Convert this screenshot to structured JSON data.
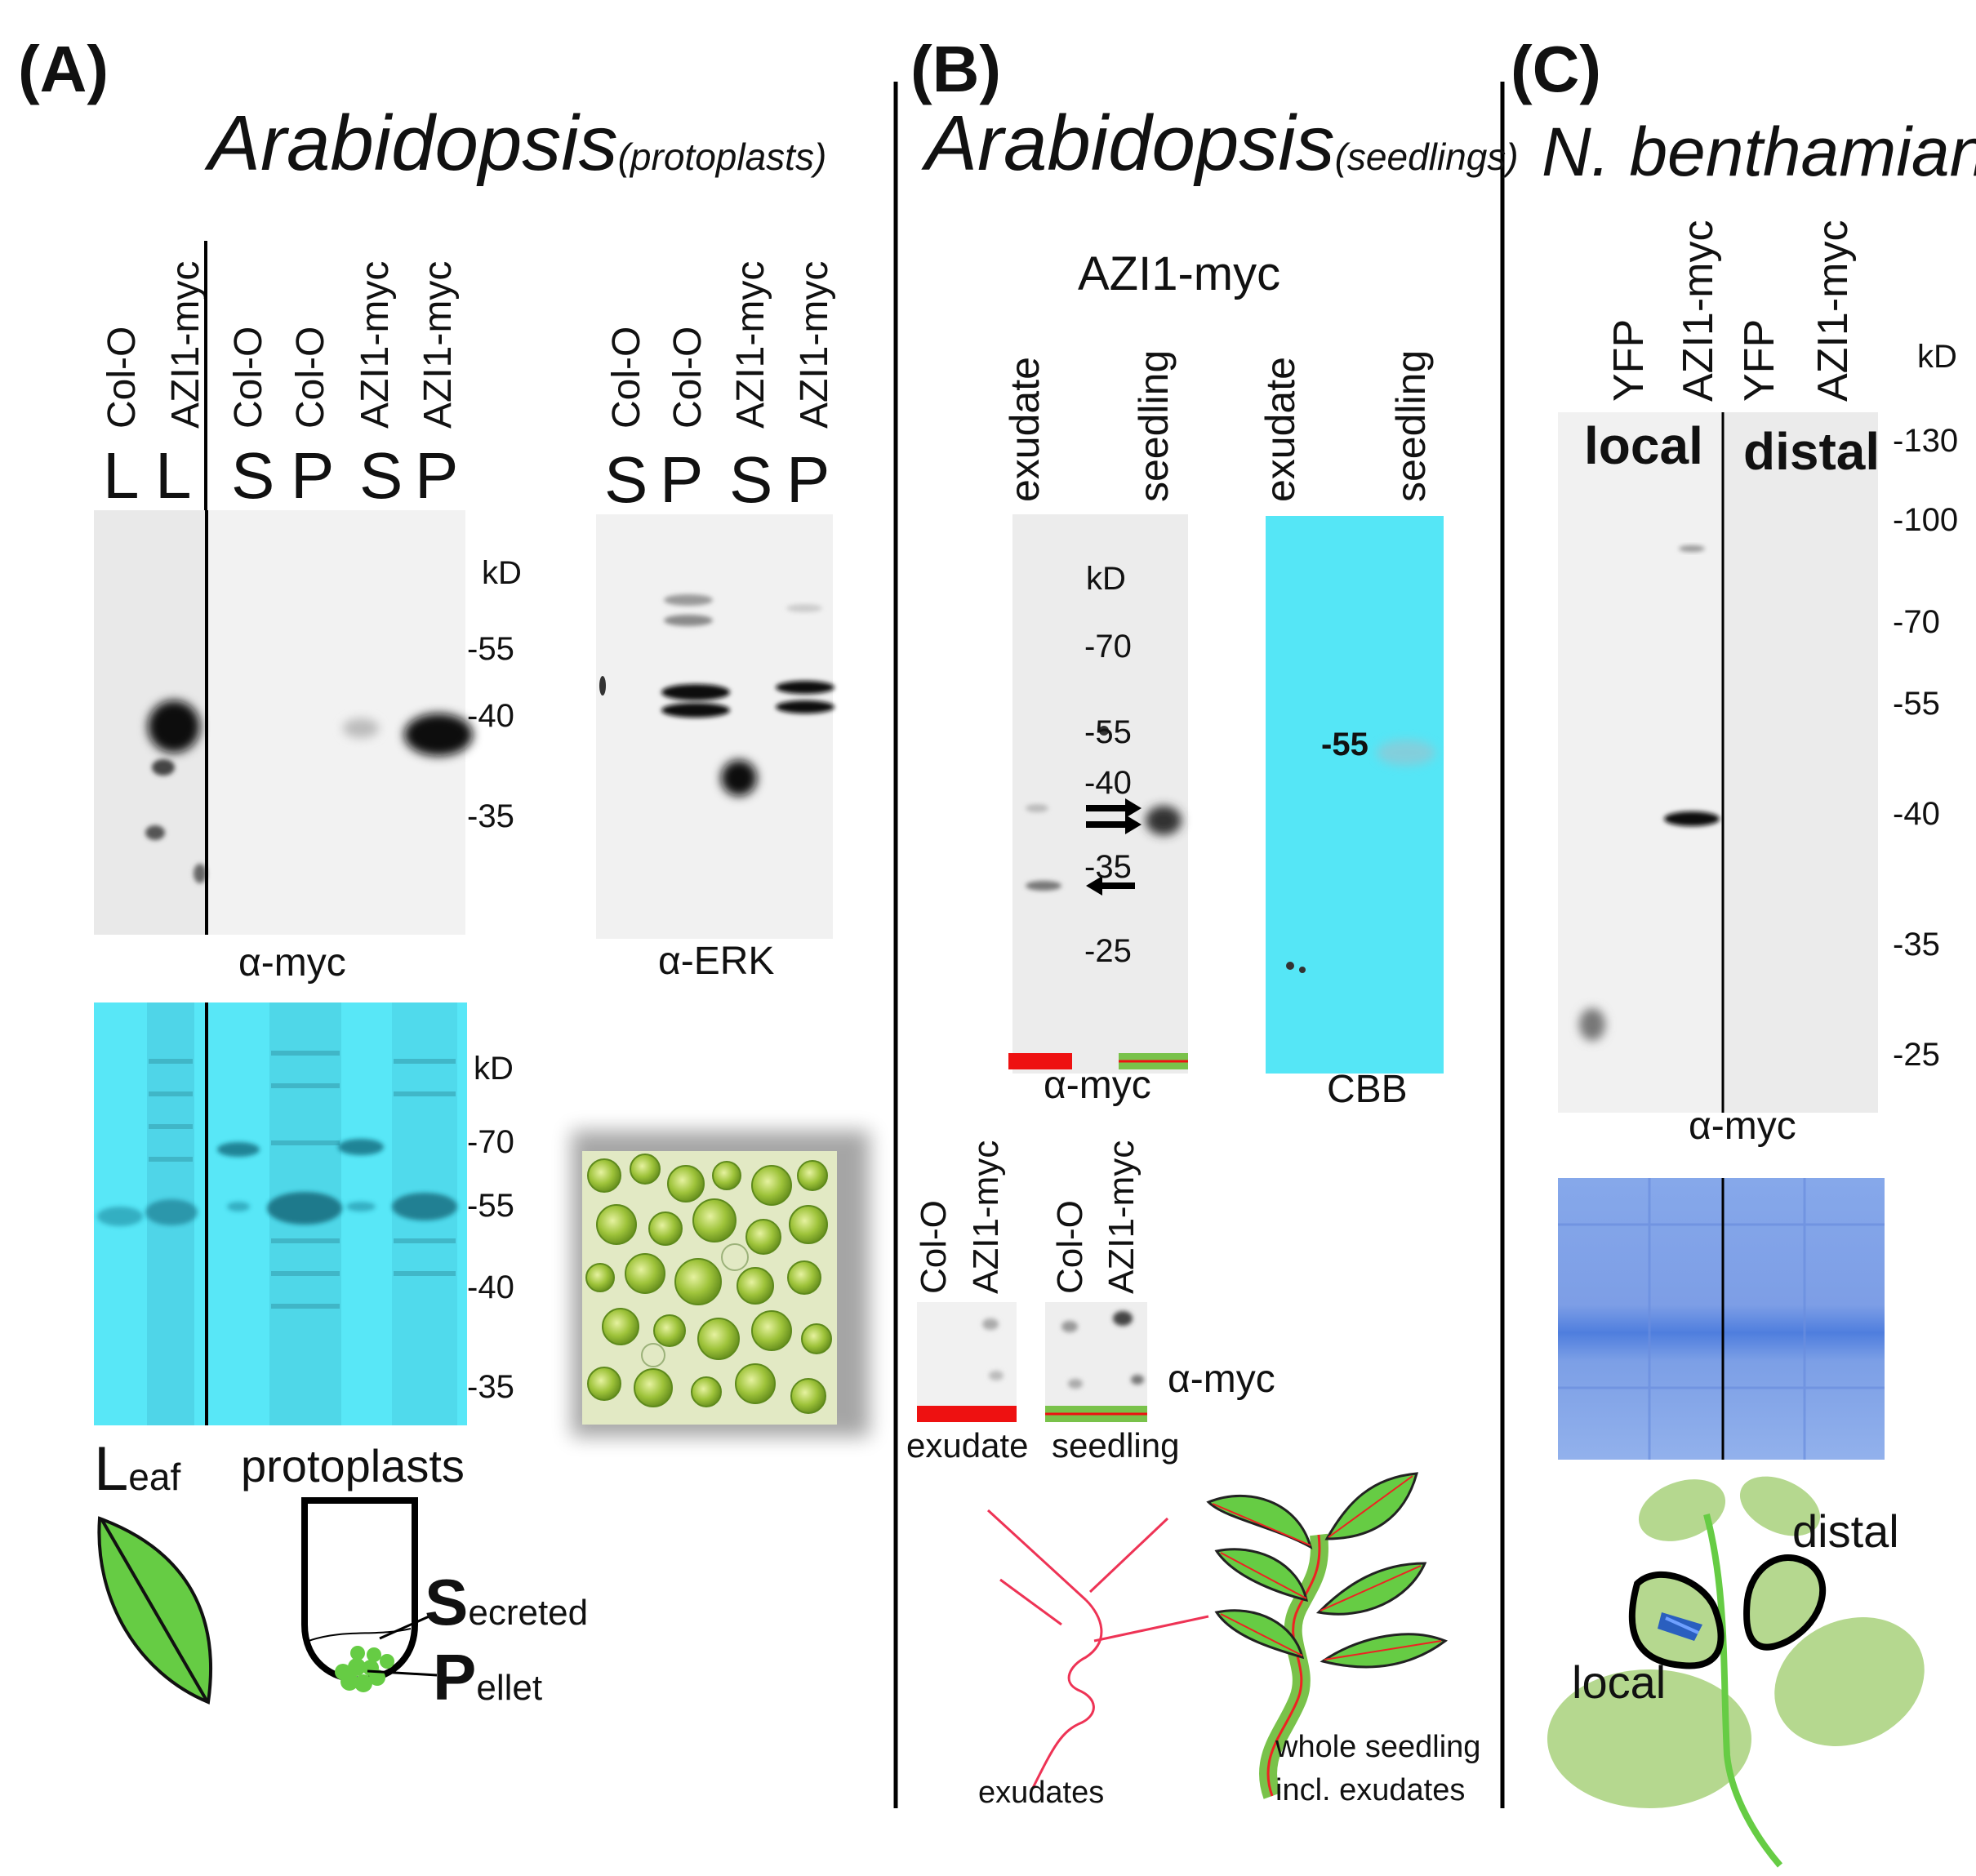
{
  "panels": {
    "A": {
      "letter": "(A)",
      "title_main": "Arabidopsis",
      "title_sub": "(protoplasts)",
      "myc_blot": {
        "lanes": [
          "Col-O",
          "AZI1-myc",
          "Col-O",
          "Col-O",
          "AZI1-myc",
          "AZI1-myc"
        ],
        "fractions": [
          "L",
          "L",
          "S",
          "P",
          "S",
          "P"
        ],
        "kd_label": "kD",
        "markers": [
          "-55",
          "-40",
          "-35"
        ],
        "antibody": "α-myc"
      },
      "erk_blot": {
        "lanes": [
          "Col-O",
          "Col-O",
          "AZI1-myc",
          "AZI1-myc"
        ],
        "fractions": [
          "S",
          "P",
          "S",
          "P"
        ],
        "antibody": "α-ERK"
      },
      "stain_gel": {
        "kd_label": "kD",
        "markers": [
          "-70",
          "-55",
          "-40",
          "-35"
        ]
      },
      "diagram": {
        "leaf_big": "L",
        "leaf_rest": "eaf",
        "protoplasts": "protoplasts",
        "s_big": "S",
        "s_rest": "ecreted",
        "p_big": "P",
        "p_rest": "ellet"
      }
    },
    "B": {
      "letter": "(B)",
      "title_main": "Arabidopsis",
      "title_sub": "(seedlings)",
      "construct": "AZI1-myc",
      "myc_blot": {
        "lanes": [
          "exudate",
          "seedling"
        ],
        "kd_label": "kD",
        "markers": [
          "-70",
          "-55",
          "-40",
          "-35",
          "-25"
        ],
        "antibody": "α-myc"
      },
      "cbb_gel": {
        "lanes": [
          "exudate",
          "seedling"
        ],
        "marker": "-55",
        "stain": "CBB"
      },
      "dot_blot": {
        "lanes": [
          "Col-O",
          "AZI1-myc",
          "Col-O",
          "AZI1-myc"
        ],
        "antibody": "α-myc",
        "group_labels": [
          "exudate",
          "seedling"
        ]
      },
      "diagram": {
        "exudates": "exudates",
        "whole_line1": "whole seedling",
        "whole_line2": "incl. exudates"
      }
    },
    "C": {
      "letter": "(C)",
      "title_main": "N. benthamiana",
      "blot": {
        "lanes": [
          "YFP",
          "AZI1-myc",
          "YFP",
          "AZI1-myc"
        ],
        "kd_label": "kD",
        "markers": [
          "-130",
          "-100",
          "-70",
          "-55",
          "-40",
          "-35",
          "-25"
        ],
        "region_left": "local",
        "region_right": "distal",
        "antibody": "α-myc"
      },
      "diagram": {
        "distal": "distal",
        "local": "local"
      }
    }
  },
  "colors": {
    "cyan_gel": "#55e6f6",
    "blue_gel": "#7f9fe6",
    "leaf_green": "#66cc44",
    "light_green": "#b5d88f",
    "exudate_red": "#ee1111",
    "seedling_green": "#79c24a"
  }
}
